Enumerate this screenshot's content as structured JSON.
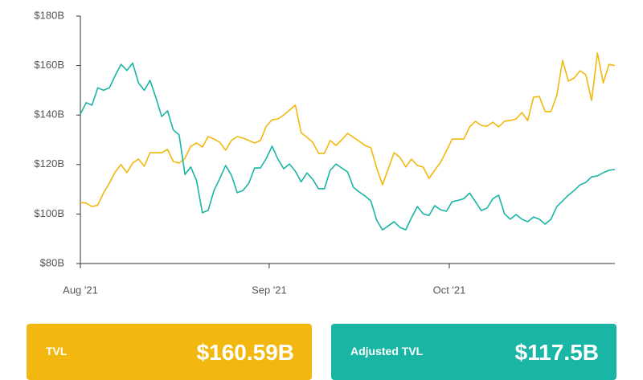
{
  "chart_data": {
    "type": "line",
    "x": [
      0,
      1,
      2,
      3,
      4,
      5,
      6,
      7,
      8,
      9,
      10,
      11,
      12,
      13,
      14,
      15,
      16,
      17,
      18,
      19,
      20,
      21,
      22,
      23,
      24,
      25,
      26,
      27,
      28,
      29,
      30,
      31,
      32,
      33,
      34,
      35,
      36,
      37,
      38,
      39,
      40,
      41,
      42,
      43,
      44,
      45,
      46,
      47,
      48,
      49,
      50,
      51,
      52,
      53,
      54,
      55,
      56,
      57,
      58,
      59,
      60,
      61,
      62,
      63,
      64,
      65,
      66,
      67,
      68,
      69,
      70,
      71,
      72,
      73,
      74,
      75,
      76,
      77,
      78,
      79,
      80,
      81,
      82,
      83,
      84,
      85,
      86,
      87,
      88,
      89,
      90,
      91,
      92
    ],
    "xlim": [
      0,
      92
    ],
    "xticks": [
      {
        "value": 0,
        "label": "Aug '21"
      },
      {
        "value": 32.5,
        "label": "Sep '21"
      },
      {
        "value": 63.5,
        "label": "Oct '21"
      }
    ],
    "ylim": [
      80,
      180
    ],
    "yticks": [
      {
        "value": 80,
        "label": "$80B"
      },
      {
        "value": 100,
        "label": "$100B"
      },
      {
        "value": 120,
        "label": "$120B"
      },
      {
        "value": 140,
        "label": "$140B"
      },
      {
        "value": 160,
        "label": "$160B"
      },
      {
        "value": 180,
        "label": "$180B"
      }
    ],
    "series": [
      {
        "name": "TVL",
        "color": "#f2b80f",
        "values": [
          104.7,
          104.4,
          103,
          103.6,
          108.6,
          112.5,
          117,
          120,
          116.7,
          120.6,
          122.2,
          119.3,
          124.8,
          124.8,
          124.8,
          126.1,
          121.2,
          120.6,
          122.5,
          127.4,
          128.7,
          127.1,
          131.3,
          130.3,
          129,
          125.8,
          129.7,
          131.3,
          130.7,
          129.7,
          128.7,
          129.7,
          135.5,
          138.1,
          138.4,
          140,
          142,
          144,
          132.9,
          131,
          129,
          124.5,
          124.5,
          129.7,
          127.7,
          130,
          132.6,
          131,
          129.4,
          127.7,
          126.8,
          118.6,
          111.8,
          118.3,
          124.8,
          122.9,
          119,
          122.2,
          119.6,
          119,
          114.4,
          117.7,
          120.9,
          125.5,
          130.3,
          130.3,
          130.3,
          135.2,
          137.5,
          135.8,
          135.5,
          137.1,
          135.2,
          137.5,
          137.8,
          138.4,
          141,
          137.8,
          147.2,
          147.5,
          141.4,
          141.4,
          147.9,
          162.1,
          153.7,
          155,
          157.9,
          156.3,
          145.9,
          165.1,
          153,
          160.5,
          160
        ]
      },
      {
        "name": "Adjusted TVL",
        "color": "#19b5a5",
        "values": [
          140.4,
          145,
          144,
          151,
          150,
          151,
          156,
          160.5,
          158,
          161,
          153,
          150,
          154,
          147,
          139.4,
          141.7,
          134,
          132,
          116,
          119,
          113.5,
          100.5,
          101.5,
          109.5,
          114.4,
          119.6,
          115.7,
          108.6,
          109.5,
          112.5,
          118.6,
          118.6,
          122.5,
          127.4,
          122.2,
          118.3,
          120.2,
          117.3,
          113,
          116.6,
          114,
          110.2,
          110.2,
          117.7,
          120.2,
          118.6,
          117,
          110.8,
          108.9,
          107.3,
          105.3,
          97.5,
          93.6,
          95.2,
          96.9,
          94.6,
          93.6,
          98.5,
          103,
          100.1,
          99.4,
          103.4,
          101.7,
          101.1,
          105,
          105.5,
          106.2,
          108.5,
          105,
          101.4,
          102.4,
          106.2,
          107.6,
          100.1,
          97.9,
          99.8,
          97.9,
          96.9,
          98.8,
          97.9,
          95.9,
          97.9,
          103,
          105.3,
          107.6,
          109.5,
          111.8,
          112.8,
          115,
          115.4,
          116.7,
          117.7,
          118
        ]
      }
    ]
  },
  "cards": [
    {
      "value": "$160.59B"
    },
    {
      "value": "$117.5B"
    }
  ]
}
